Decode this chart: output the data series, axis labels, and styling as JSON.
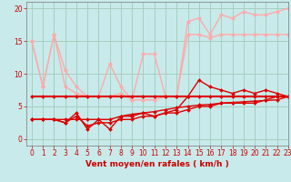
{
  "x": [
    0,
    1,
    2,
    3,
    4,
    5,
    6,
    7,
    8,
    9,
    10,
    11,
    12,
    13,
    14,
    15,
    16,
    17,
    18,
    19,
    20,
    21,
    22,
    23
  ],
  "series": [
    {
      "name": "line1_light_top",
      "color": "#ffaaaa",
      "linewidth": 1.0,
      "marker": "o",
      "markersize": 2.5,
      "y": [
        15,
        8,
        16,
        10.5,
        8,
        6.5,
        6.5,
        11.5,
        8,
        6,
        13,
        13,
        6.5,
        6.5,
        18,
        18.5,
        16,
        19,
        18.5,
        19.5,
        19,
        19,
        19.5,
        20
      ]
    },
    {
      "name": "line2_light_bottom",
      "color": "#ffaaaa",
      "linewidth": 1.0,
      "marker": "o",
      "markersize": 2.5,
      "y": [
        15,
        8,
        16,
        8,
        7,
        6.5,
        6.5,
        6.5,
        7,
        6,
        6,
        6,
        6.5,
        6.5,
        16,
        16,
        15.5,
        16,
        16,
        16,
        16,
        16,
        16,
        16
      ]
    },
    {
      "name": "line3_dark_volatile",
      "color": "#dd0000",
      "linewidth": 1.0,
      "marker": "D",
      "markersize": 2.0,
      "y": [
        3,
        3,
        3,
        2.5,
        4,
        1.5,
        3,
        1.5,
        3.5,
        3.5,
        4,
        3.5,
        4,
        4.5,
        6.5,
        9,
        8,
        7.5,
        7,
        7.5,
        7,
        7.5,
        7,
        6.5
      ]
    },
    {
      "name": "line4_dark_flat",
      "color": "#dd0000",
      "linewidth": 1.5,
      "marker": "D",
      "markersize": 2.0,
      "y": [
        6.5,
        6.5,
        6.5,
        6.5,
        6.5,
        6.5,
        6.5,
        6.5,
        6.5,
        6.5,
        6.5,
        6.5,
        6.5,
        6.5,
        6.5,
        6.5,
        6.5,
        6.5,
        6.5,
        6.5,
        6.5,
        6.5,
        6.5,
        6.5
      ]
    },
    {
      "name": "line5_dark_rising1",
      "color": "#dd0000",
      "linewidth": 1.0,
      "marker": "D",
      "markersize": 2.0,
      "y": [
        3,
        3,
        3,
        3,
        3,
        3,
        3,
        3,
        3.5,
        3.8,
        4.0,
        4.2,
        4.5,
        4.8,
        5.0,
        5.2,
        5.3,
        5.5,
        5.6,
        5.7,
        5.8,
        5.9,
        6.0,
        6.5
      ]
    },
    {
      "name": "line6_dark_rising2",
      "color": "#dd0000",
      "linewidth": 1.0,
      "marker": "D",
      "markersize": 2.0,
      "y": [
        3,
        3,
        3,
        2.5,
        3.5,
        2.0,
        2.5,
        2.5,
        3.0,
        3.0,
        3.5,
        3.5,
        4.0,
        4.0,
        4.5,
        5.0,
        5.0,
        5.5,
        5.5,
        5.5,
        5.5,
        6.0,
        6.5,
        6.5
      ]
    }
  ],
  "xlabel": "Vent moyen/en rafales ( km/h )",
  "xlim": [
    -0.5,
    23
  ],
  "ylim": [
    -1,
    21
  ],
  "yticks": [
    0,
    5,
    10,
    15,
    20
  ],
  "xticks": [
    0,
    1,
    2,
    3,
    4,
    5,
    6,
    7,
    8,
    9,
    10,
    11,
    12,
    13,
    14,
    15,
    16,
    17,
    18,
    19,
    20,
    21,
    22,
    23
  ],
  "bg_color": "#c8eaea",
  "grid_color": "#a0ccbb",
  "text_color": "#cc0000",
  "xlabel_fontsize": 6.5,
  "tick_fontsize": 5.5
}
